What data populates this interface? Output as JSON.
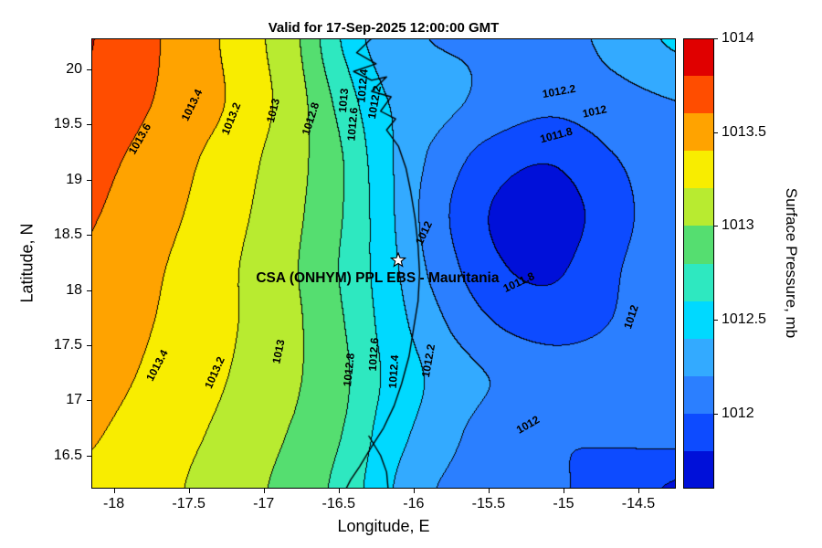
{
  "chart_data": {
    "type": "heatmap",
    "subtype": "filled-contour-map",
    "title": "Valid for 17-Sep-2025 12:00:00 GMT",
    "xlabel": "Longitude, E",
    "ylabel": "Latitude, N",
    "xlim": [
      -18.15,
      -14.25
    ],
    "ylim": [
      16.2,
      20.28
    ],
    "xtick_values": [
      -18,
      -17.5,
      -17,
      -16.5,
      -16,
      -15.5,
      -15,
      -14.5
    ],
    "xtick_labels": [
      "-18",
      "-17.5",
      "-17",
      "-16.5",
      "-16",
      "-15.5",
      "-15",
      "-14.5"
    ],
    "ytick_values": [
      16.5,
      17,
      17.5,
      18,
      18.5,
      19,
      19.5,
      20
    ],
    "ytick_labels": [
      "16.5",
      "17",
      "17.5",
      "18",
      "18.5",
      "19",
      "19.5",
      "20"
    ],
    "contour_interval_mb": 0.2,
    "contour_levels": [
      1011.8,
      1012.0,
      1012.2,
      1012.4,
      1012.6,
      1012.8,
      1013.0,
      1013.2,
      1013.4,
      1013.6,
      1013.8
    ],
    "x_lon": [
      -18.3,
      -17.8,
      -17.3,
      -16.8,
      -16.45,
      -16.2,
      -15.9,
      -15.5,
      -15.1,
      -14.7,
      -14.2
    ],
    "y_lat": [
      16.2,
      16.7,
      17.2,
      17.7,
      18.2,
      18.7,
      19.2,
      19.7,
      20.28
    ],
    "pressure_mb": [
      [
        1013.38,
        1013.28,
        1013.12,
        1012.93,
        1012.72,
        1012.45,
        1012.22,
        1012.1,
        1012.02,
        1011.95,
        1011.75
      ],
      [
        1013.45,
        1013.32,
        1013.17,
        1012.98,
        1012.78,
        1012.52,
        1012.32,
        1012.12,
        1012.02,
        1012.02,
        1012.08
      ],
      [
        1013.52,
        1013.38,
        1013.22,
        1013.03,
        1012.82,
        1012.58,
        1012.38,
        1012.2,
        1012.1,
        1012.1,
        1012.12
      ],
      [
        1013.56,
        1013.42,
        1013.25,
        1013.04,
        1012.79,
        1012.54,
        1012.28,
        1012.02,
        1011.92,
        1012.0,
        1012.16
      ],
      [
        1013.6,
        1013.45,
        1013.26,
        1013.02,
        1012.76,
        1012.5,
        1012.18,
        1011.86,
        1011.76,
        1011.96,
        1012.18
      ],
      [
        1013.65,
        1013.5,
        1013.3,
        1013.05,
        1012.78,
        1012.48,
        1012.12,
        1011.8,
        1011.7,
        1011.9,
        1012.18
      ],
      [
        1013.7,
        1013.55,
        1013.34,
        1013.08,
        1012.78,
        1012.46,
        1012.18,
        1011.92,
        1011.82,
        1011.98,
        1012.15
      ],
      [
        1013.8,
        1013.62,
        1013.42,
        1013.1,
        1012.7,
        1012.42,
        1012.28,
        1012.15,
        1012.05,
        1012.12,
        1012.2
      ],
      [
        1013.85,
        1013.65,
        1013.4,
        1013.05,
        1012.55,
        1012.3,
        1012.2,
        1012.18,
        1012.12,
        1012.25,
        1012.45
      ]
    ]
  },
  "colorbar": {
    "label": "Surface Pressure, mb",
    "min": 1011.6,
    "max": 1014.0,
    "step": 0.2,
    "tick_values": [
      1012,
      1012.5,
      1013,
      1013.5,
      1014
    ],
    "tick_labels": [
      "1012",
      "1012.5",
      "1013",
      "1013.5",
      "1014"
    ],
    "band_colors_low_to_high": [
      "#0010D9",
      "#0D4BFF",
      "#2B7FFF",
      "#33AAFF",
      "#00D9FF",
      "#2EE8C0",
      "#55DE70",
      "#B8EB30",
      "#F8ED00",
      "#FFA300",
      "#FF4D00",
      "#E00000"
    ]
  },
  "contour_labels": [
    {
      "t": "1013.6",
      "lon": -17.83,
      "lat": 19.37,
      "rot": -60
    },
    {
      "t": "1013.4",
      "lon": -17.48,
      "lat": 19.68,
      "rot": -64
    },
    {
      "t": "1013.2",
      "lon": -17.22,
      "lat": 19.55,
      "rot": -68
    },
    {
      "t": "1013",
      "lon": -16.94,
      "lat": 19.63,
      "rot": -76
    },
    {
      "t": "1012.8",
      "lon": -16.69,
      "lat": 19.55,
      "rot": -72
    },
    {
      "t": "1013",
      "lon": -16.47,
      "lat": 19.72,
      "rot": -85
    },
    {
      "t": "1012.6",
      "lon": -16.41,
      "lat": 19.5,
      "rot": -85
    },
    {
      "t": "1012.4",
      "lon": -16.34,
      "lat": 19.85,
      "rot": -85
    },
    {
      "t": "1012.2",
      "lon": -16.26,
      "lat": 19.7,
      "rot": -80
    },
    {
      "t": "1012.2",
      "lon": -15.03,
      "lat": 19.8,
      "rot": -10
    },
    {
      "t": "1012",
      "lon": -14.79,
      "lat": 19.62,
      "rot": -12
    },
    {
      "t": "1011.8",
      "lon": -15.05,
      "lat": 19.4,
      "rot": -15
    },
    {
      "t": "1012",
      "lon": -15.93,
      "lat": 18.52,
      "rot": -65
    },
    {
      "t": "1011.8",
      "lon": -15.3,
      "lat": 18.07,
      "rot": -25
    },
    {
      "t": "1012",
      "lon": -14.55,
      "lat": 17.76,
      "rot": -72
    },
    {
      "t": "1013.4",
      "lon": -17.71,
      "lat": 17.32,
      "rot": -62
    },
    {
      "t": "1013.2",
      "lon": -17.33,
      "lat": 17.25,
      "rot": -66
    },
    {
      "t": "1013",
      "lon": -16.9,
      "lat": 17.44,
      "rot": -78
    },
    {
      "t": "1012.8",
      "lon": -16.43,
      "lat": 17.28,
      "rot": -84
    },
    {
      "t": "1012.6",
      "lon": -16.27,
      "lat": 17.42,
      "rot": -86
    },
    {
      "t": "1012.4",
      "lon": -16.13,
      "lat": 17.26,
      "rot": -86
    },
    {
      "t": "1012.2",
      "lon": -15.9,
      "lat": 17.36,
      "rot": -80
    },
    {
      "t": "1012",
      "lon": -15.24,
      "lat": 16.78,
      "rot": -30
    }
  ],
  "overlays": {
    "coastline": [
      [
        -16.28,
        20.28
      ],
      [
        -16.38,
        20.15
      ],
      [
        -16.25,
        20.05
      ],
      [
        -16.4,
        19.98
      ],
      [
        -16.28,
        19.9
      ],
      [
        -16.18,
        19.93
      ],
      [
        -16.28,
        19.8
      ],
      [
        -16.15,
        19.75
      ],
      [
        -16.22,
        19.62
      ],
      [
        -16.12,
        19.55
      ],
      [
        -16.18,
        19.45
      ],
      [
        -16.1,
        19.3
      ],
      [
        -16.05,
        19.1
      ],
      [
        -16.02,
        18.9
      ],
      [
        -15.99,
        18.65
      ],
      [
        -15.97,
        18.4
      ],
      [
        -15.96,
        18.15
      ],
      [
        -15.97,
        17.9
      ],
      [
        -16.0,
        17.65
      ],
      [
        -16.03,
        17.4
      ],
      [
        -16.08,
        17.15
      ],
      [
        -16.13,
        16.95
      ],
      [
        -16.2,
        16.75
      ],
      [
        -16.28,
        16.58
      ],
      [
        -16.36,
        16.4
      ],
      [
        -16.42,
        16.28
      ],
      [
        -16.45,
        16.2
      ]
    ],
    "river": [
      [
        -16.3,
        16.68
      ],
      [
        -16.22,
        16.5
      ],
      [
        -16.18,
        16.35
      ],
      [
        -16.17,
        16.2
      ]
    ],
    "marker": {
      "symbol": "star",
      "lon": -16.1,
      "lat": 18.27,
      "label": "CSA (ONHYM) PPL EBS  - Mauritania",
      "label_lon": -16.24,
      "label_lat": 18.1
    }
  }
}
